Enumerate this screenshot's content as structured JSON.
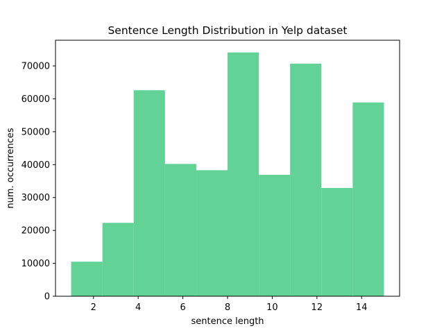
{
  "chart_data": {
    "type": "bar",
    "title": "Sentence Length Distribution in Yelp dataset",
    "xlabel": "sentence length",
    "ylabel": "num. occurrences",
    "bin_edges": [
      1,
      2.4,
      3.8,
      5.2,
      6.6,
      8.0,
      9.4,
      10.8,
      12.2,
      13.6,
      15
    ],
    "values": [
      10500,
      22300,
      62600,
      40200,
      38300,
      74100,
      36900,
      70700,
      32900,
      58900
    ],
    "xlim": [
      0.3,
      15.7
    ],
    "ylim": [
      0,
      77805
    ],
    "xticks": [
      2,
      4,
      6,
      8,
      10,
      12,
      14
    ],
    "yticks": [
      0,
      10000,
      20000,
      30000,
      40000,
      50000,
      60000,
      70000
    ],
    "bar_color": "#62d297",
    "grid": false,
    "legend": "none"
  }
}
